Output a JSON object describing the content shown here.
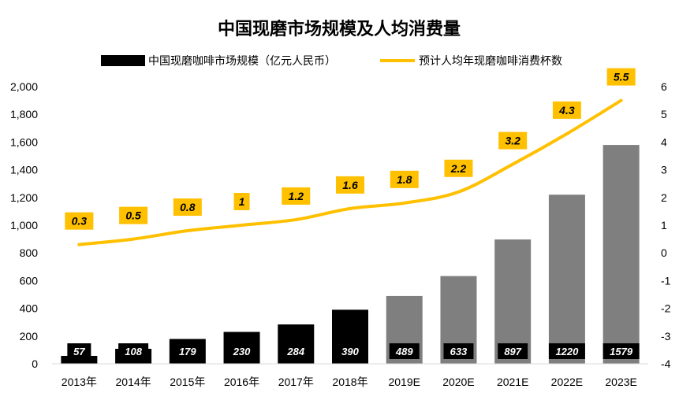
{
  "chart_data": {
    "type": "bar",
    "title": "中国现磨市场规模及人均消费量",
    "categories": [
      "2013年",
      "2014年",
      "2015年",
      "2016年",
      "2017年",
      "2018年",
      "2019E",
      "2020E",
      "2021E",
      "2022E",
      "2023E"
    ],
    "series": [
      {
        "name": "中国现磨咖啡市场规模（亿元人民币）",
        "type": "bar",
        "axis": "left",
        "values": [
          57,
          108,
          179,
          230,
          284,
          390,
          489,
          633,
          897,
          1220,
          1579
        ],
        "labels": [
          "57",
          "108",
          "179",
          "230",
          "284",
          "390",
          "489",
          "633",
          "897",
          "1220",
          "1579"
        ],
        "actual_color": "#000000",
        "estimate_color": "#7f7f7f",
        "estimate_from_index": 6
      },
      {
        "name": "预计人均年现磨咖啡消费杯数",
        "type": "line",
        "axis": "right",
        "color": "#ffc000",
        "values": [
          0.3,
          0.5,
          0.8,
          1.0,
          1.2,
          1.6,
          1.8,
          2.2,
          3.2,
          4.3,
          5.5
        ],
        "labels": [
          "0.3",
          "0.5",
          "0.8",
          "1",
          "1.2",
          "1.6",
          "1.8",
          "2.2",
          "3.2",
          "4.3",
          "5.5"
        ]
      }
    ],
    "y_left": {
      "ylim": [
        0,
        2000
      ],
      "ticks": [
        0,
        200,
        400,
        600,
        800,
        1000,
        1200,
        1400,
        1600,
        1800,
        2000
      ],
      "tick_labels": [
        "0",
        "200",
        "400",
        "600",
        "800",
        "1,000",
        "1,200",
        "1,400",
        "1,600",
        "1,800",
        "2,000"
      ]
    },
    "y_right": {
      "ylim": [
        -4,
        6
      ],
      "ticks": [
        -4,
        -3,
        -2,
        -1,
        0,
        1,
        2,
        3,
        4,
        5,
        6
      ],
      "tick_labels": [
        "-4",
        "-3",
        "-2",
        "-1",
        "0",
        "1",
        "2",
        "3",
        "4",
        "5",
        "6"
      ]
    },
    "grid": false,
    "legend_position": "top"
  }
}
